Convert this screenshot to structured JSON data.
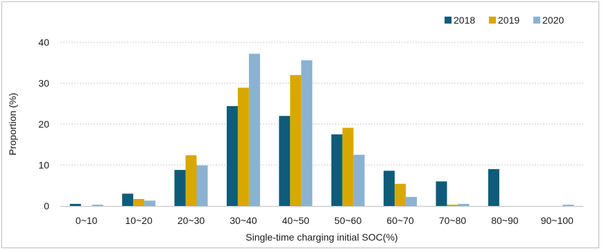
{
  "chart_data": {
    "type": "bar",
    "title": "",
    "xlabel": "Single-time charging initial SOC(%)",
    "ylabel": "Proportion (%)",
    "ylim": [
      0,
      40
    ],
    "yticks": [
      "0",
      "10",
      "20",
      "30",
      "40"
    ],
    "grid": true,
    "legend_position": "top-right",
    "categories": [
      "0~10",
      "10~20",
      "20~30",
      "30~40",
      "40~50",
      "50~60",
      "60~70",
      "70~80",
      "80~90",
      "90~100"
    ],
    "series": [
      {
        "name": "2018",
        "color": "#0e5c7a",
        "values": [
          0.5,
          3.0,
          8.8,
          24.4,
          22.0,
          17.5,
          8.6,
          6.0,
          9.0,
          0.0
        ]
      },
      {
        "name": "2019",
        "color": "#d9a800",
        "values": [
          0.0,
          1.7,
          12.4,
          28.9,
          32.0,
          19.1,
          5.4,
          0.3,
          0.0,
          0.0
        ]
      },
      {
        "name": "2020",
        "color": "#8bb2d1",
        "values": [
          0.3,
          1.3,
          9.9,
          37.2,
          35.6,
          12.5,
          2.2,
          0.5,
          0.0,
          0.3
        ]
      }
    ]
  }
}
